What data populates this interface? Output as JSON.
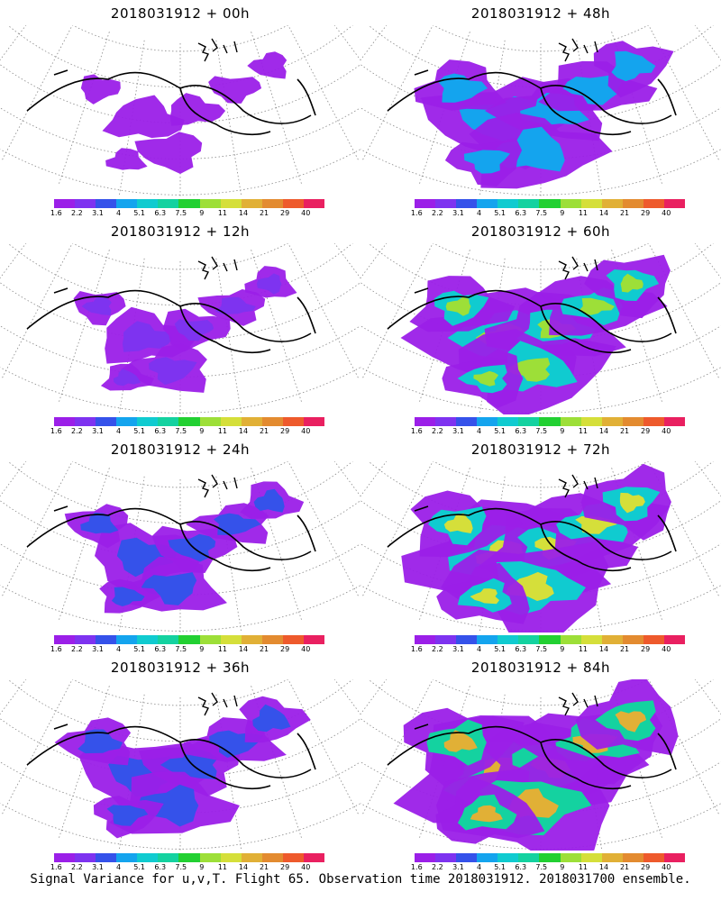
{
  "panels": [
    {
      "title": "2018031912 + 00h",
      "intensity": 0
    },
    {
      "title": "2018031912 + 48h",
      "intensity": 4
    },
    {
      "title": "2018031912 + 12h",
      "intensity": 1
    },
    {
      "title": "2018031912 + 60h",
      "intensity": 5
    },
    {
      "title": "2018031912 + 24h",
      "intensity": 2
    },
    {
      "title": "2018031912 + 72h",
      "intensity": 6
    },
    {
      "title": "2018031912 + 36h",
      "intensity": 3
    },
    {
      "title": "2018031912 + 84h",
      "intensity": 7
    }
  ],
  "colorbar": {
    "colors": [
      "#9b1fe8",
      "#7e33f0",
      "#3552ea",
      "#14a4ee",
      "#10cbd0",
      "#14d2a0",
      "#22d032",
      "#9ddf38",
      "#d5df3a",
      "#e1b036",
      "#e38b30",
      "#ee5a2c",
      "#e92060"
    ],
    "tick_labels": [
      "1.6",
      "2.2",
      "3.1",
      "4",
      "5.1",
      "6.3",
      "7.5",
      "9",
      "11",
      "14",
      "21",
      "29",
      "40"
    ]
  },
  "footer": "Signal Variance for u,v,T. Flight 65. Observation time 2018031912. 2018031700 ensemble."
}
